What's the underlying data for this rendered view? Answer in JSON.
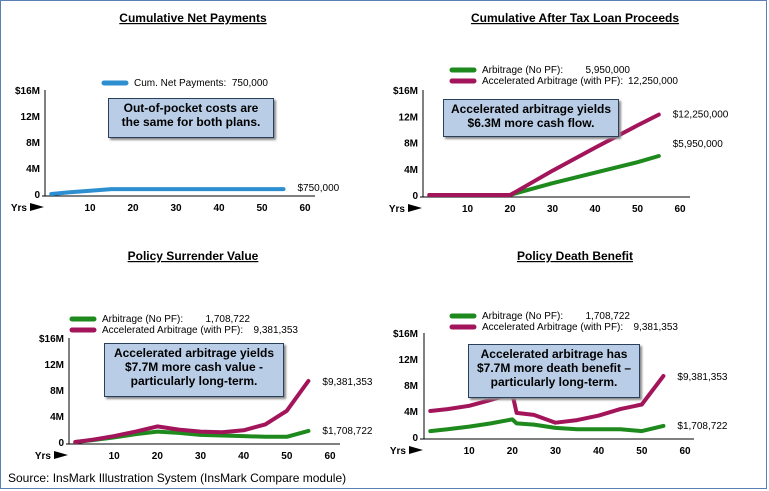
{
  "source": "Source: InsMark Illustration System (InsMark Compare module)",
  "chart_data": [
    {
      "type": "line",
      "title": "Cumulative Net Payments",
      "x_tick_labels": [
        "Yrs",
        "10",
        "20",
        "30",
        "40",
        "50",
        "60"
      ],
      "y_tick_labels": [
        "$16M",
        "12M",
        "8M",
        "4M",
        "0"
      ],
      "xlim": [
        1,
        60
      ],
      "ylim": [
        0,
        16
      ],
      "series": [
        {
          "name": "Cum. Net Payments:",
          "value_label": "750,000",
          "end_label": "$750,000",
          "color": "#2e8fd0",
          "x": [
            1,
            5,
            10,
            15,
            20,
            25,
            30,
            35,
            40,
            45,
            50,
            55
          ],
          "y": [
            0.0,
            0.25,
            0.5,
            0.75,
            0.75,
            0.75,
            0.75,
            0.75,
            0.75,
            0.75,
            0.75,
            0.75
          ]
        }
      ],
      "note": "Out-of-pocket costs are\nthe same for both plans."
    },
    {
      "type": "line",
      "title": "Cumulative After Tax Loan Proceeds",
      "x_tick_labels": [
        "Yrs",
        "10",
        "20",
        "30",
        "40",
        "50",
        "60"
      ],
      "y_tick_labels": [
        "$16M",
        "12M",
        "8M",
        "4M",
        "0"
      ],
      "xlim": [
        1,
        60
      ],
      "ylim": [
        0,
        16
      ],
      "series": [
        {
          "name": "Arbitrage (No PF):",
          "value_label": "5,950,000",
          "end_label": "$5,950,000",
          "color": "#1e8a1e",
          "x": [
            1,
            10,
            20,
            21,
            30,
            40,
            50,
            55
          ],
          "y": [
            0,
            0,
            0,
            0.2,
            1.8,
            3.4,
            5.0,
            5.95
          ]
        },
        {
          "name": "Accelerated Arbitrage (with PF):",
          "value_label": "12,250,000",
          "end_label": "$12,250,000",
          "color": "#a3155a",
          "x": [
            1,
            10,
            20,
            21,
            30,
            40,
            50,
            55
          ],
          "y": [
            0,
            0,
            0,
            0.35,
            3.7,
            7.2,
            10.6,
            12.25
          ]
        }
      ],
      "note": "Accelerated arbitrage yields\n$6.3M more cash flow."
    },
    {
      "type": "line",
      "title": "Policy Surrender Value",
      "x_tick_labels": [
        "Yrs",
        "10",
        "20",
        "30",
        "40",
        "50",
        "60"
      ],
      "y_tick_labels": [
        "$16M",
        "12M",
        "8M",
        "4M",
        "0"
      ],
      "xlim": [
        1,
        60
      ],
      "ylim": [
        0,
        16
      ],
      "series": [
        {
          "name": "Arbitrage (No PF):",
          "value_label": "1,708,722",
          "end_label": "$1,708,722",
          "color": "#1e8a1e",
          "x": [
            1,
            5,
            10,
            15,
            20,
            25,
            30,
            35,
            40,
            45,
            50,
            55
          ],
          "y": [
            0.0,
            0.3,
            0.7,
            1.2,
            1.6,
            1.4,
            1.1,
            1.0,
            0.9,
            0.8,
            0.8,
            1.7
          ]
        },
        {
          "name": "Accelerated Arbitrage (with PF):",
          "value_label": "9,381,353",
          "end_label": "$9,381,353",
          "color": "#a3155a",
          "x": [
            1,
            5,
            10,
            15,
            20,
            25,
            30,
            35,
            40,
            45,
            50,
            55
          ],
          "y": [
            0.0,
            0.35,
            0.9,
            1.6,
            2.4,
            1.9,
            1.6,
            1.5,
            1.8,
            2.7,
            4.8,
            9.38
          ]
        }
      ],
      "note": "Accelerated arbitrage yields\n$7.7M more cash value -\nparticularly long-term."
    },
    {
      "type": "line",
      "title": "Policy Death Benefit",
      "x_tick_labels": [
        "Yrs",
        "10",
        "20",
        "30",
        "40",
        "50",
        "60"
      ],
      "y_tick_labels": [
        "$16M",
        "12M",
        "8M",
        "4M",
        "0"
      ],
      "xlim": [
        1,
        60
      ],
      "ylim": [
        0,
        16
      ],
      "series": [
        {
          "name": "Arbitrage (No PF):",
          "value_label": "1,708,722",
          "end_label": "$1,708,722",
          "color": "#1e8a1e",
          "x": [
            1,
            5,
            10,
            15,
            20,
            21,
            25,
            30,
            35,
            40,
            45,
            50,
            55
          ],
          "y": [
            0.9,
            1.2,
            1.6,
            2.1,
            2.7,
            2.1,
            1.9,
            1.4,
            1.2,
            1.2,
            1.2,
            0.9,
            1.7
          ]
        },
        {
          "name": "Accelerated Arbitrage (with PF):",
          "value_label": "9,381,353",
          "end_label": "$9,381,353",
          "color": "#a3155a",
          "x": [
            1,
            5,
            10,
            15,
            20,
            21,
            25,
            30,
            35,
            40,
            45,
            50,
            55
          ],
          "y": [
            4.0,
            4.3,
            4.8,
            5.7,
            6.7,
            3.7,
            3.4,
            2.2,
            2.6,
            3.3,
            4.3,
            5.0,
            9.38
          ]
        }
      ],
      "note": "Accelerated arbitrage has\n$7.7M more death benefit –\nparticularly long-term."
    }
  ]
}
